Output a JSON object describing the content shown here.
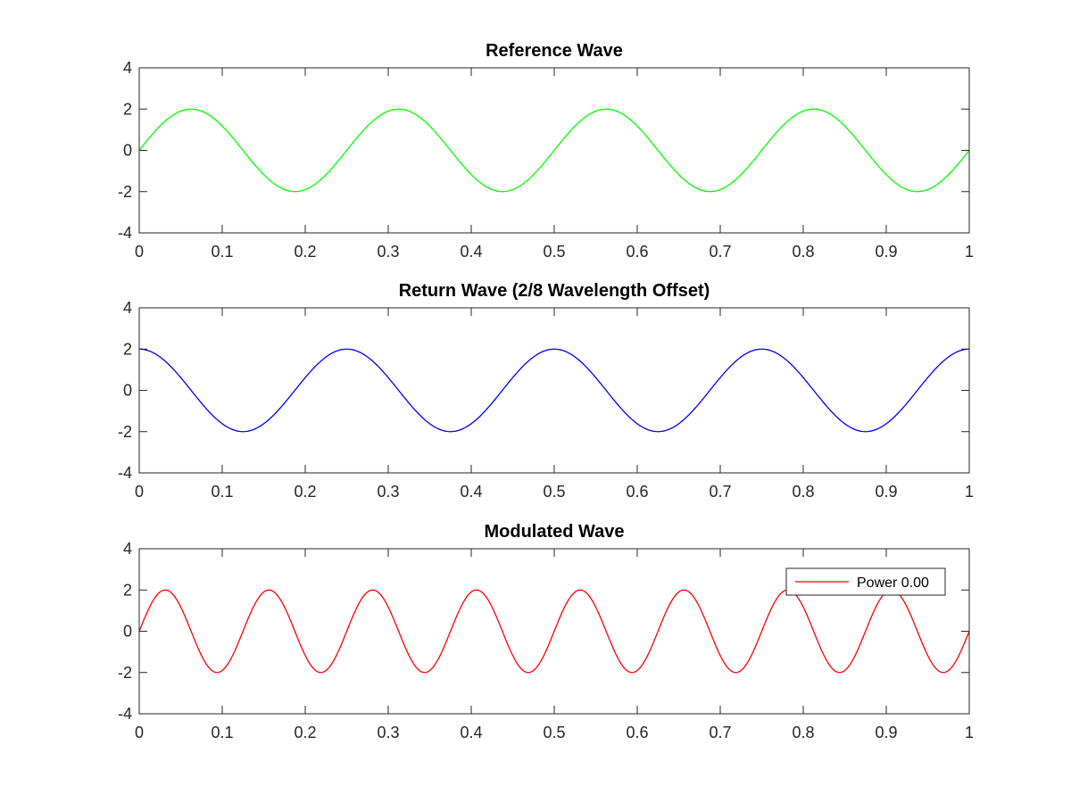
{
  "chart_data": [
    {
      "type": "line",
      "title": "Reference Wave",
      "xlim": [
        0,
        1
      ],
      "ylim": [
        -4,
        4
      ],
      "xticks": [
        0,
        0.1,
        0.2,
        0.3,
        0.4,
        0.5,
        0.6,
        0.7,
        0.8,
        0.9,
        1
      ],
      "xtick_labels": [
        "0",
        "0.1",
        "0.2",
        "0.3",
        "0.4",
        "0.5",
        "0.6",
        "0.7",
        "0.8",
        "0.9",
        "1"
      ],
      "yticks": [
        -4,
        -2,
        0,
        2,
        4
      ],
      "ytick_labels": [
        "-4",
        "-2",
        "0",
        "2",
        "4"
      ],
      "grid": false,
      "series": [
        {
          "color": "#00ff00",
          "function": "sine",
          "amplitude": 2,
          "cycles": 4,
          "phase_cycles": 0
        }
      ]
    },
    {
      "type": "line",
      "title": "Return Wave (2/8 Wavelength Offset)",
      "xlim": [
        0,
        1
      ],
      "ylim": [
        -4,
        4
      ],
      "xticks": [
        0,
        0.1,
        0.2,
        0.3,
        0.4,
        0.5,
        0.6,
        0.7,
        0.8,
        0.9,
        1
      ],
      "xtick_labels": [
        "0",
        "0.1",
        "0.2",
        "0.3",
        "0.4",
        "0.5",
        "0.6",
        "0.7",
        "0.8",
        "0.9",
        "1"
      ],
      "yticks": [
        -4,
        -2,
        0,
        2,
        4
      ],
      "ytick_labels": [
        "-4",
        "-2",
        "0",
        "2",
        "4"
      ],
      "grid": false,
      "series": [
        {
          "color": "#0000ff",
          "function": "sine",
          "amplitude": 2,
          "cycles": 4,
          "phase_cycles": 0.25
        }
      ]
    },
    {
      "type": "line",
      "title": "Modulated Wave",
      "xlim": [
        0,
        1
      ],
      "ylim": [
        -4,
        4
      ],
      "xticks": [
        0,
        0.1,
        0.2,
        0.3,
        0.4,
        0.5,
        0.6,
        0.7,
        0.8,
        0.9,
        1
      ],
      "xtick_labels": [
        "0",
        "0.1",
        "0.2",
        "0.3",
        "0.4",
        "0.5",
        "0.6",
        "0.7",
        "0.8",
        "0.9",
        "1"
      ],
      "yticks": [
        -4,
        -2,
        0,
        2,
        4
      ],
      "ytick_labels": [
        "-4",
        "-2",
        "0",
        "2",
        "4"
      ],
      "grid": false,
      "legend": "top-right",
      "series": [
        {
          "name": "Power 0.00",
          "color": "#ff0000",
          "function": "sine",
          "amplitude": 2,
          "cycles": 8,
          "phase_cycles": 0
        }
      ]
    }
  ]
}
